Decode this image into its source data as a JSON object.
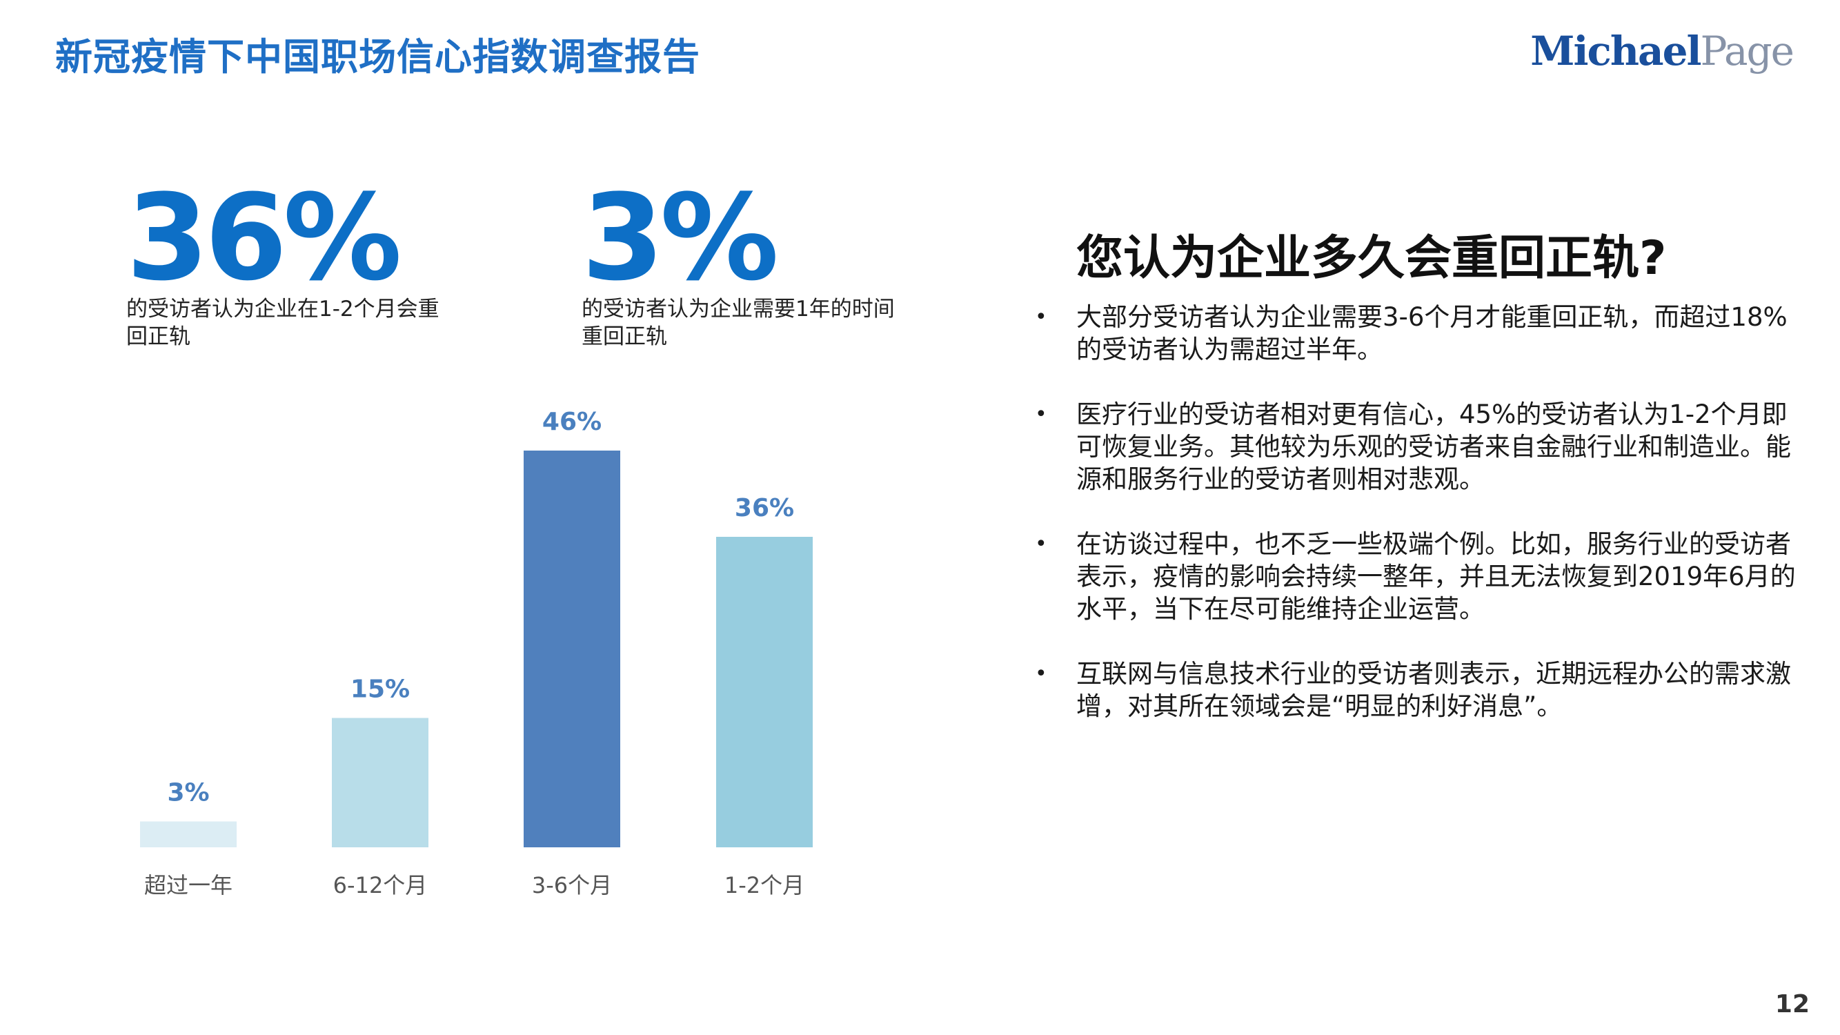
{
  "header": {
    "title": "新冠疫情下中国职场信心指数调查报告",
    "logo_part1": "Michael",
    "logo_part2": "Page"
  },
  "stats": [
    {
      "value": "36%",
      "caption": "的受访者认为企业在1-2个月会重回正轨"
    },
    {
      "value": "3%",
      "caption": "的受访者认为企业需要1年的时间重回正轨"
    }
  ],
  "chart_data": {
    "type": "bar",
    "categories": [
      "超过一年",
      "6-12个月",
      "3-6个月",
      "1-2个月"
    ],
    "values": [
      3,
      15,
      46,
      36
    ],
    "value_labels": [
      "3%",
      "15%",
      "46%",
      "36%"
    ],
    "colors": [
      "#dcedf4",
      "#b8dde9",
      "#5080bd",
      "#97cddf"
    ],
    "ylim": [
      0,
      50
    ],
    "grid": false,
    "legend": "none"
  },
  "right_panel": {
    "question": "您认为企业多久会重回正轨?",
    "bullet_symbol": "•",
    "bullets": [
      "大部分受访者认为企业需要3-6个月才能重回正轨，而超过18%的受访者认为需超过半年。",
      "医疗行业的受访者相对更有信心，45%的受访者认为1-2个月即可恢复业务。其他较为乐观的受访者来自金融行业和制造业。能源和服务行业的受访者则相对悲观。",
      "在访谈过程中，也不乏一些极端个例。比如，服务行业的受访者表示，疫情的影响会持续一整年，并且无法恢复到2019年6月的水平，当下在尽可能维持企业运营。",
      "互联网与信息技术行业的受访者则表示，近期远程办公的需求激增，对其所在领域会是“明显的利好消息”。"
    ]
  },
  "footer": {
    "page_number": "12"
  }
}
